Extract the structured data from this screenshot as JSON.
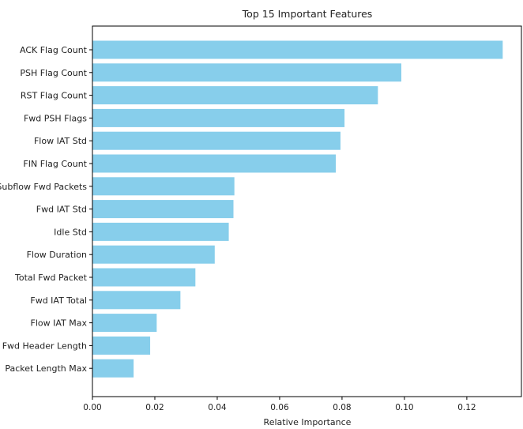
{
  "chart_data": {
    "type": "bar",
    "orientation": "horizontal",
    "title": "Top 15 Important Features",
    "xlabel": "Relative Importance",
    "ylabel": "",
    "categories": [
      "ACK Flag Count",
      "PSH Flag Count",
      "RST Flag Count",
      "Fwd PSH Flags",
      "Flow IAT Std",
      "FIN Flag Count",
      "Subflow Fwd Packets",
      "Fwd IAT Std",
      "Idle Std",
      "Flow Duration",
      "Total Fwd Packet",
      "Fwd IAT Total",
      "Flow IAT Max",
      "Fwd Header Length",
      "Packet Length Max"
    ],
    "values": [
      0.1315,
      0.099,
      0.0915,
      0.0808,
      0.0795,
      0.078,
      0.0455,
      0.0452,
      0.0437,
      0.0392,
      0.033,
      0.0282,
      0.0206,
      0.0185,
      0.0132
    ],
    "xlim": [
      0,
      0.1375
    ],
    "xticks": [
      "0.00",
      "0.02",
      "0.04",
      "0.06",
      "0.08",
      "0.10",
      "0.12"
    ],
    "bar_color": "#87ceeb",
    "grid": false,
    "legend": "none"
  }
}
